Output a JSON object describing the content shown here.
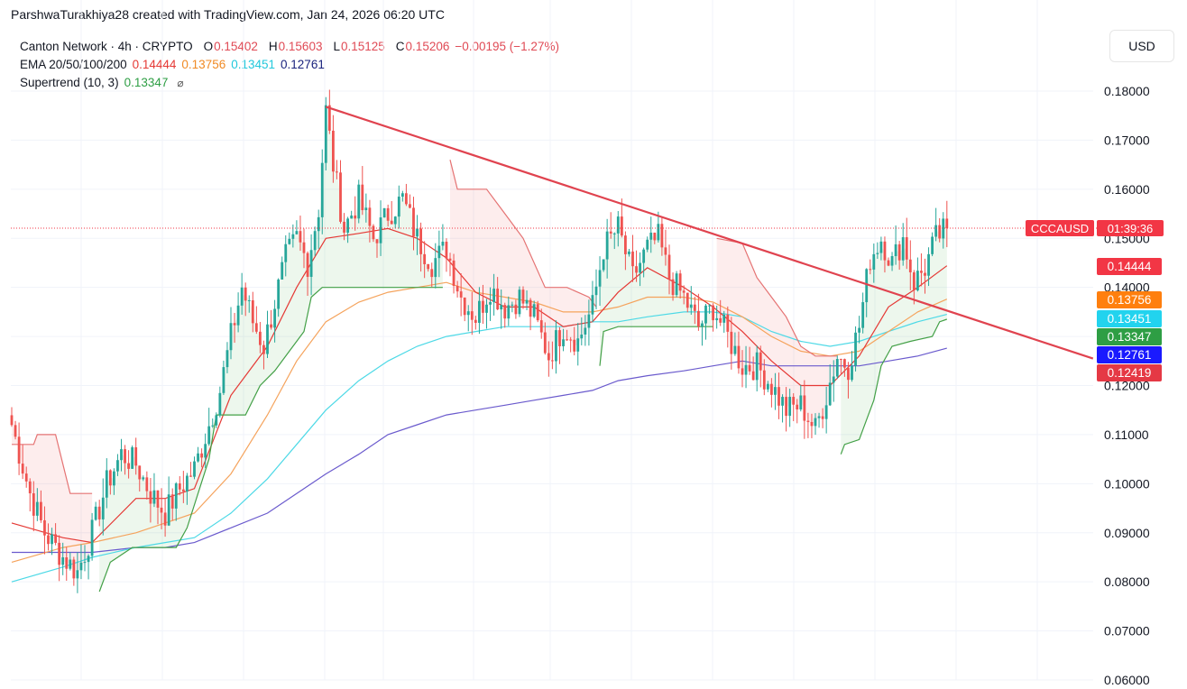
{
  "attribution": "ParshwaTurakhiya28 created with TradingView.com, Jan 24, 2026 06:20 UTC",
  "currency_button": "USD",
  "legend": {
    "symbol": "Canton Network · 4h · CRYPTO",
    "o_label": "O",
    "o": "0.15402",
    "h_label": "H",
    "h": "0.15603",
    "l_label": "L",
    "l": "0.15125",
    "c_label": "C",
    "c": "0.15206",
    "change": "−0.00195 (−1.27%)",
    "ema_label": "EMA 20/50/100/200",
    "ema20": "0.14444",
    "ema50": "0.13756",
    "ema100": "0.13451",
    "ema200": "0.12761",
    "st_label": "Supertrend (10, 3)",
    "st": "0.13347",
    "eye_icon": "⌀"
  },
  "colors": {
    "up": "#26a69a",
    "down": "#ef5350",
    "ema20": "#e53935",
    "ema50": "#f5a35c",
    "ema100": "#4dd9e6",
    "ema200": "#6a5acd",
    "st_up": "#43a047",
    "st_down": "#e57373",
    "trendline": "#e0434f"
  },
  "chart_data": {
    "type": "candlestick",
    "symbol": "CCCAUSD",
    "timeframe": "4h",
    "ylim": [
      0.06,
      0.18
    ],
    "y_ticks": [
      "0.18000",
      "0.17000",
      "0.16000",
      "0.15000",
      "0.14000",
      "0.13000",
      "0.12000",
      "0.11000",
      "0.10000",
      "0.09000",
      "0.08000",
      "0.07000",
      "0.06000"
    ],
    "last_price_label": "CCCAUSD",
    "last_price": 0.15206,
    "countdown": "01:39:36",
    "price_badges": [
      {
        "value": 0.14444,
        "label": "0.14444",
        "color": "#f23645"
      },
      {
        "value": 0.13756,
        "label": "0.13756",
        "color": "#ff7f0e"
      },
      {
        "value": 0.13451,
        "label": "0.13451",
        "color": "#22d3ee"
      },
      {
        "value": 0.13347,
        "label": "0.13347",
        "color": "#2e9e44"
      },
      {
        "value": 0.12761,
        "label": "0.12761",
        "color": "#1a1aff"
      },
      {
        "value": 0.12419,
        "label": "0.12419",
        "color": "#e53945"
      }
    ],
    "anchors": [
      [
        0,
        0.112
      ],
      [
        5,
        0.098
      ],
      [
        9,
        0.09
      ],
      [
        14,
        0.085
      ],
      [
        18,
        0.082
      ],
      [
        22,
        0.09
      ],
      [
        26,
        0.1
      ],
      [
        30,
        0.106
      ],
      [
        34,
        0.104
      ],
      [
        38,
        0.098
      ],
      [
        42,
        0.094
      ],
      [
        46,
        0.099
      ],
      [
        50,
        0.103
      ],
      [
        54,
        0.112
      ],
      [
        57,
        0.119
      ],
      [
        60,
        0.13
      ],
      [
        63,
        0.14
      ],
      [
        66,
        0.133
      ],
      [
        69,
        0.128
      ],
      [
        72,
        0.137
      ],
      [
        75,
        0.146
      ],
      [
        78,
        0.15
      ],
      [
        81,
        0.145
      ],
      [
        84,
        0.156
      ],
      [
        86,
        0.176
      ],
      [
        88,
        0.165
      ],
      [
        91,
        0.152
      ],
      [
        95,
        0.158
      ],
      [
        99,
        0.15
      ],
      [
        103,
        0.155
      ],
      [
        107,
        0.158
      ],
      [
        111,
        0.15
      ],
      [
        115,
        0.145
      ],
      [
        119,
        0.148
      ],
      [
        123,
        0.138
      ],
      [
        127,
        0.134
      ],
      [
        131,
        0.14
      ],
      [
        135,
        0.136
      ],
      [
        139,
        0.138
      ],
      [
        143,
        0.134
      ],
      [
        147,
        0.126
      ],
      [
        151,
        0.132
      ],
      [
        155,
        0.129
      ],
      [
        159,
        0.136
      ],
      [
        162,
        0.148
      ],
      [
        166,
        0.152
      ],
      [
        170,
        0.142
      ],
      [
        174,
        0.148
      ],
      [
        177,
        0.15
      ],
      [
        180,
        0.142
      ],
      [
        184,
        0.138
      ],
      [
        188,
        0.132
      ],
      [
        192,
        0.136
      ],
      [
        196,
        0.13
      ],
      [
        200,
        0.124
      ],
      [
        204,
        0.124
      ],
      [
        208,
        0.12
      ],
      [
        212,
        0.115
      ],
      [
        216,
        0.116
      ],
      [
        220,
        0.111
      ],
      [
        223,
        0.118
      ],
      [
        226,
        0.126
      ],
      [
        229,
        0.124
      ],
      [
        232,
        0.132
      ],
      [
        235,
        0.146
      ],
      [
        238,
        0.15
      ],
      [
        241,
        0.145
      ],
      [
        244,
        0.15
      ],
      [
        247,
        0.141
      ],
      [
        250,
        0.144
      ],
      [
        253,
        0.15
      ],
      [
        256,
        0.152
      ]
    ],
    "ema": {
      "ema20": [
        [
          0,
          0.092
        ],
        [
          14,
          0.089
        ],
        [
          22,
          0.088
        ],
        [
          34,
          0.097
        ],
        [
          42,
          0.097
        ],
        [
          50,
          0.099
        ],
        [
          60,
          0.118
        ],
        [
          70,
          0.128
        ],
        [
          78,
          0.14
        ],
        [
          86,
          0.15
        ],
        [
          95,
          0.151
        ],
        [
          103,
          0.152
        ],
        [
          111,
          0.15
        ],
        [
          119,
          0.146
        ],
        [
          127,
          0.139
        ],
        [
          135,
          0.136
        ],
        [
          143,
          0.136
        ],
        [
          151,
          0.132
        ],
        [
          159,
          0.133
        ],
        [
          166,
          0.139
        ],
        [
          174,
          0.144
        ],
        [
          184,
          0.14
        ],
        [
          192,
          0.136
        ],
        [
          200,
          0.131
        ],
        [
          208,
          0.125
        ],
        [
          216,
          0.12
        ],
        [
          224,
          0.12
        ],
        [
          232,
          0.126
        ],
        [
          240,
          0.136
        ],
        [
          248,
          0.14
        ],
        [
          256,
          0.1444
        ]
      ],
      "ema50": [
        [
          0,
          0.084
        ],
        [
          14,
          0.087
        ],
        [
          22,
          0.088
        ],
        [
          34,
          0.09
        ],
        [
          42,
          0.092
        ],
        [
          50,
          0.094
        ],
        [
          60,
          0.102
        ],
        [
          70,
          0.114
        ],
        [
          78,
          0.125
        ],
        [
          86,
          0.133
        ],
        [
          95,
          0.137
        ],
        [
          103,
          0.139
        ],
        [
          111,
          0.14
        ],
        [
          119,
          0.141
        ],
        [
          127,
          0.139
        ],
        [
          135,
          0.138
        ],
        [
          143,
          0.137
        ],
        [
          151,
          0.135
        ],
        [
          159,
          0.135
        ],
        [
          166,
          0.136
        ],
        [
          174,
          0.138
        ],
        [
          184,
          0.138
        ],
        [
          192,
          0.137
        ],
        [
          200,
          0.134
        ],
        [
          208,
          0.13
        ],
        [
          216,
          0.127
        ],
        [
          224,
          0.126
        ],
        [
          232,
          0.127
        ],
        [
          240,
          0.131
        ],
        [
          248,
          0.135
        ],
        [
          256,
          0.1376
        ]
      ],
      "ema100": [
        [
          0,
          0.08
        ],
        [
          14,
          0.083
        ],
        [
          22,
          0.085
        ],
        [
          34,
          0.087
        ],
        [
          42,
          0.088
        ],
        [
          50,
          0.089
        ],
        [
          60,
          0.094
        ],
        [
          70,
          0.101
        ],
        [
          78,
          0.108
        ],
        [
          86,
          0.115
        ],
        [
          95,
          0.121
        ],
        [
          103,
          0.125
        ],
        [
          111,
          0.128
        ],
        [
          119,
          0.13
        ],
        [
          127,
          0.131
        ],
        [
          135,
          0.132
        ],
        [
          143,
          0.132
        ],
        [
          151,
          0.132
        ],
        [
          159,
          0.133
        ],
        [
          166,
          0.133
        ],
        [
          174,
          0.134
        ],
        [
          184,
          0.135
        ],
        [
          192,
          0.135
        ],
        [
          200,
          0.134
        ],
        [
          208,
          0.131
        ],
        [
          216,
          0.129
        ],
        [
          224,
          0.128
        ],
        [
          232,
          0.129
        ],
        [
          240,
          0.131
        ],
        [
          248,
          0.133
        ],
        [
          256,
          0.1345
        ]
      ],
      "ema200": [
        [
          0,
          0.086
        ],
        [
          14,
          0.086
        ],
        [
          22,
          0.086
        ],
        [
          34,
          0.087
        ],
        [
          42,
          0.087
        ],
        [
          50,
          0.088
        ],
        [
          60,
          0.091
        ],
        [
          70,
          0.094
        ],
        [
          78,
          0.098
        ],
        [
          86,
          0.102
        ],
        [
          95,
          0.106
        ],
        [
          103,
          0.11
        ],
        [
          111,
          0.112
        ],
        [
          119,
          0.114
        ],
        [
          127,
          0.115
        ],
        [
          135,
          0.116
        ],
        [
          143,
          0.117
        ],
        [
          151,
          0.118
        ],
        [
          159,
          0.119
        ],
        [
          166,
          0.121
        ],
        [
          174,
          0.122
        ],
        [
          184,
          0.123
        ],
        [
          192,
          0.124
        ],
        [
          200,
          0.125
        ],
        [
          208,
          0.124
        ],
        [
          216,
          0.124
        ],
        [
          224,
          0.124
        ],
        [
          232,
          0.124
        ],
        [
          240,
          0.125
        ],
        [
          248,
          0.126
        ],
        [
          256,
          0.1276
        ]
      ]
    },
    "supertrend": [
      {
        "dir": "down",
        "pts": [
          [
            0,
            0.108
          ],
          [
            6,
            0.108
          ],
          [
            7,
            0.11
          ],
          [
            12,
            0.11
          ],
          [
            16,
            0.098
          ],
          [
            22,
            0.098
          ]
        ]
      },
      {
        "dir": "up",
        "pts": [
          [
            24,
            0.078
          ],
          [
            27,
            0.084
          ],
          [
            29,
            0.085
          ],
          [
            33,
            0.087
          ],
          [
            45,
            0.087
          ],
          [
            48,
            0.091
          ],
          [
            54,
            0.105
          ],
          [
            56,
            0.114
          ],
          [
            64,
            0.114
          ],
          [
            68,
            0.12
          ],
          [
            72,
            0.123
          ],
          [
            76,
            0.127
          ],
          [
            80,
            0.131
          ],
          [
            82,
            0.138
          ],
          [
            85,
            0.14
          ],
          [
            118,
            0.14
          ]
        ]
      },
      {
        "dir": "down",
        "pts": [
          [
            120,
            0.166
          ],
          [
            122,
            0.16
          ],
          [
            130,
            0.16
          ],
          [
            135,
            0.155
          ],
          [
            140,
            0.15
          ],
          [
            146,
            0.14
          ],
          [
            152,
            0.14
          ],
          [
            158,
            0.138
          ],
          [
            160,
            0.136
          ]
        ]
      },
      {
        "dir": "up",
        "pts": [
          [
            161,
            0.124
          ],
          [
            162,
            0.131
          ],
          [
            166,
            0.132
          ],
          [
            175,
            0.132
          ],
          [
            192,
            0.132
          ]
        ]
      },
      {
        "dir": "down",
        "pts": [
          [
            193,
            0.15
          ],
          [
            200,
            0.149
          ],
          [
            204,
            0.142
          ],
          [
            208,
            0.138
          ],
          [
            212,
            0.134
          ],
          [
            216,
            0.128
          ],
          [
            220,
            0.126
          ],
          [
            226,
            0.126
          ]
        ]
      },
      {
        "dir": "up",
        "pts": [
          [
            227,
            0.106
          ],
          [
            228,
            0.108
          ],
          [
            232,
            0.109
          ],
          [
            234,
            0.113
          ],
          [
            236,
            0.117
          ],
          [
            238,
            0.124
          ],
          [
            241,
            0.128
          ],
          [
            246,
            0.129
          ],
          [
            252,
            0.13
          ],
          [
            254,
            0.133
          ],
          [
            256,
            0.1335
          ]
        ]
      }
    ],
    "trendline": {
      "from": [
        86,
        0.1768
      ],
      "to": [
        296,
        0.1255
      ]
    }
  }
}
